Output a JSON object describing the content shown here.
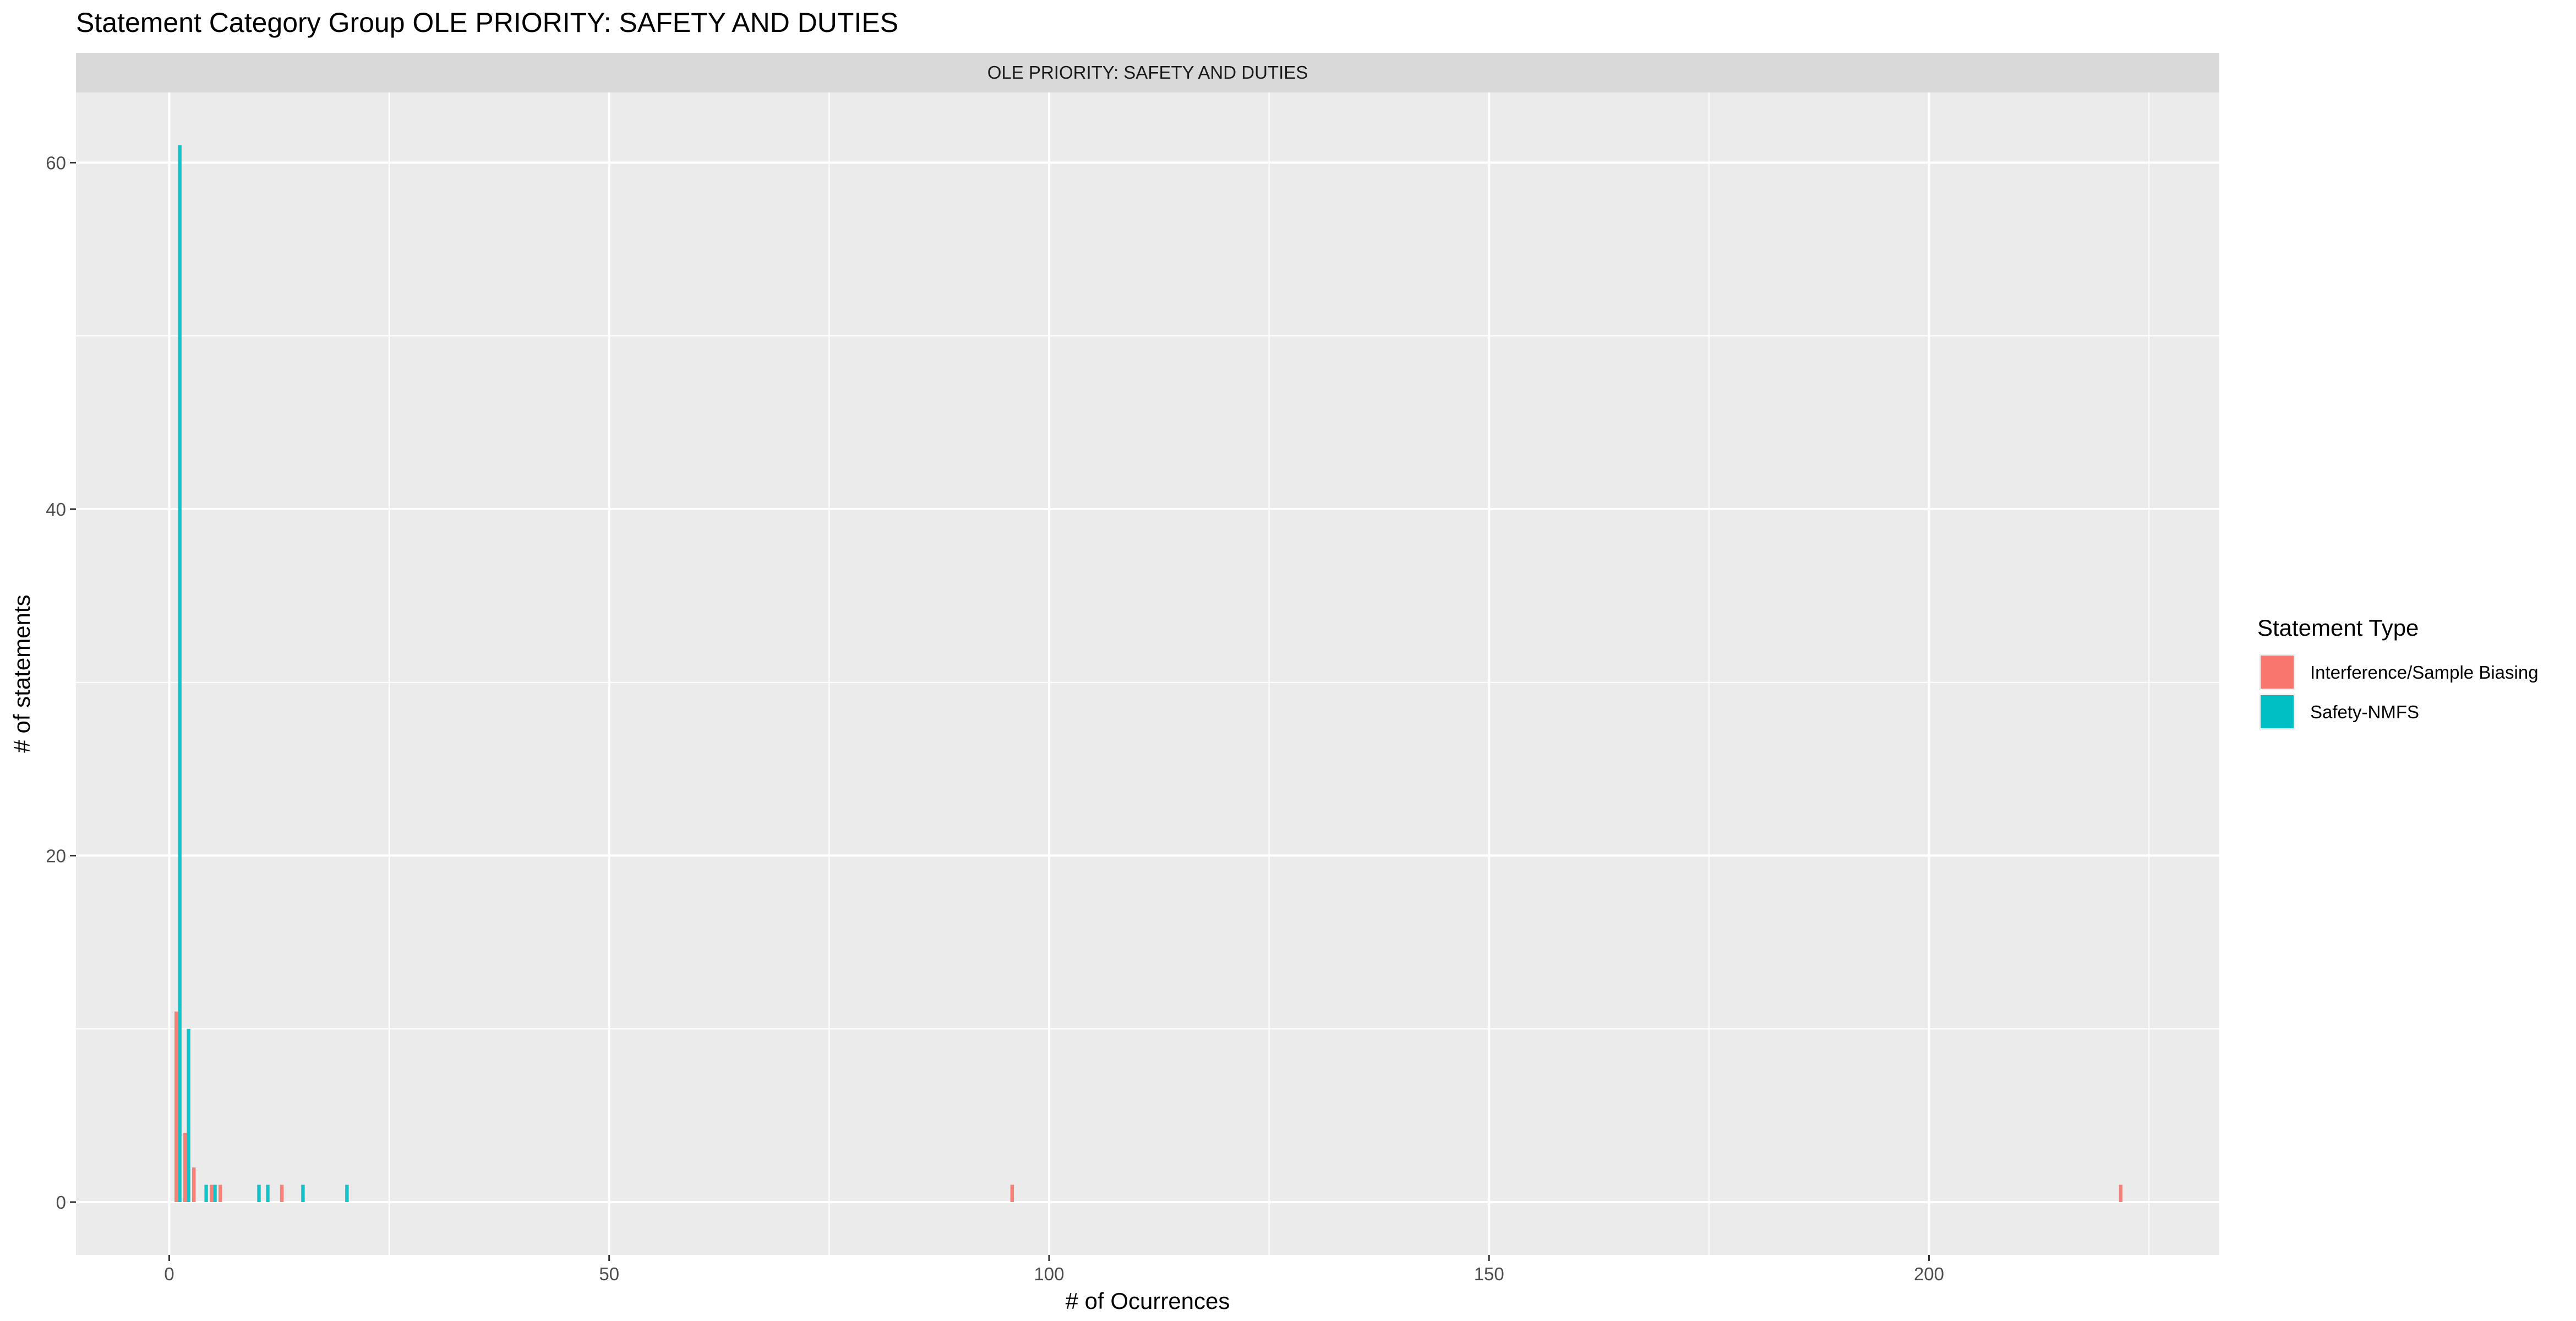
{
  "chart_data": {
    "type": "bar",
    "title": "Statement Category Group OLE PRIORITY: SAFETY AND DUTIES",
    "facet_label": "OLE PRIORITY: SAFETY AND DUTIES",
    "xlabel": "# of Ocurrences",
    "ylabel": "# of statements",
    "xlim": [
      -10.6,
      233
    ],
    "ylim": [
      -3.05,
      64.05
    ],
    "x_ticks": [
      0,
      50,
      100,
      150,
      200
    ],
    "y_ticks": [
      0,
      20,
      40,
      60
    ],
    "grid": true,
    "legend": {
      "title": "Statement Type",
      "position": "right"
    },
    "bar_width": 0.8,
    "series": [
      {
        "name": "Interference/Sample Biasing",
        "color": "#F8766D",
        "points": [
          {
            "x": 1,
            "y": 11
          },
          {
            "x": 2,
            "y": 4
          },
          {
            "x": 3,
            "y": 2
          },
          {
            "x": 5,
            "y": 1
          },
          {
            "x": 6,
            "y": 1
          },
          {
            "x": 13,
            "y": 1
          },
          {
            "x": 96,
            "y": 1
          },
          {
            "x": 222,
            "y": 1
          }
        ]
      },
      {
        "name": "Safety-NMFS",
        "color": "#00BFC4",
        "points": [
          {
            "x": 1,
            "y": 61
          },
          {
            "x": 2,
            "y": 10
          },
          {
            "x": 4,
            "y": 1
          },
          {
            "x": 5,
            "y": 1
          },
          {
            "x": 10,
            "y": 1
          },
          {
            "x": 11,
            "y": 1
          },
          {
            "x": 15,
            "y": 1
          },
          {
            "x": 20,
            "y": 1
          }
        ]
      }
    ]
  }
}
